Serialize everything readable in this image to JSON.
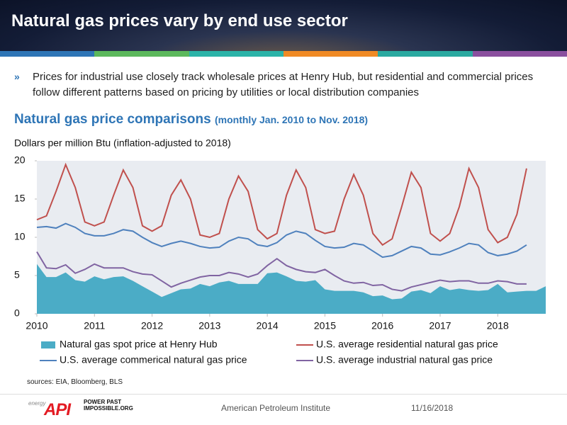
{
  "header": {
    "title": "Natural gas prices vary by end use sector"
  },
  "bullet": "Prices for industrial use closely track wholesale prices at Henry Hub, but residential and commercial prices follow different patterns based on pricing by utilities or local distribution companies",
  "sources": "sources:  EIA, Bloomberg, BLS",
  "footer": {
    "logo_small": "energy",
    "logo": "API",
    "tagline": "POWER PAST IMPOSSIBLE.ORG",
    "org": "American Petroleum Institute",
    "date": "11/16/2018"
  },
  "chart_data": {
    "type": "line",
    "title": "Natural gas price comparisons",
    "subtitle": "(monthly Jan. 2010 to Nov. 2018)",
    "y_label": "Dollars per million Btu (inflation-adjusted to 2018)",
    "background": "#e9ecf1",
    "x": [
      2010,
      2010.167,
      2010.333,
      2010.5,
      2010.667,
      2010.833,
      2011,
      2011.167,
      2011.333,
      2011.5,
      2011.667,
      2011.833,
      2012,
      2012.167,
      2012.333,
      2012.5,
      2012.667,
      2012.833,
      2013,
      2013.167,
      2013.333,
      2013.5,
      2013.667,
      2013.833,
      2014,
      2014.167,
      2014.333,
      2014.5,
      2014.667,
      2014.833,
      2015,
      2015.167,
      2015.333,
      2015.5,
      2015.667,
      2015.833,
      2016,
      2016.167,
      2016.333,
      2016.5,
      2016.667,
      2016.833,
      2017,
      2017.167,
      2017.333,
      2017.5,
      2017.667,
      2017.833,
      2018,
      2018.167,
      2018.333,
      2018.5,
      2018.667,
      2018.833
    ],
    "xlim": [
      2010,
      2018.833
    ],
    "xticks": [
      2010,
      2011,
      2012,
      2013,
      2014,
      2015,
      2016,
      2017,
      2018
    ],
    "ylim": [
      0,
      20
    ],
    "yticks": [
      0,
      5,
      10,
      15,
      20
    ],
    "series": [
      {
        "name": "Natural gas spot price at Henry Hub",
        "kind": "area",
        "color": "#4bacc6",
        "values": [
          6.5,
          4.8,
          4.8,
          5.4,
          4.4,
          4.2,
          4.9,
          4.5,
          4.8,
          4.9,
          4.3,
          3.6,
          2.9,
          2.2,
          2.7,
          3.2,
          3.3,
          3.9,
          3.6,
          4.1,
          4.3,
          3.9,
          3.9,
          3.9,
          5.3,
          5.4,
          4.9,
          4.3,
          4.2,
          4.4,
          3.2,
          3.0,
          3.0,
          3.0,
          2.8,
          2.3,
          2.4,
          1.9,
          2.0,
          2.9,
          3.1,
          2.7,
          3.6,
          3.1,
          3.3,
          3.1,
          3.0,
          3.1,
          3.9,
          2.8,
          2.9,
          3.0,
          3.0,
          3.6
        ]
      },
      {
        "name": "U.S. average residential natural gas price",
        "kind": "line",
        "color": "#c0504d",
        "values": [
          12.3,
          12.8,
          16,
          19.5,
          16.5,
          12.0,
          11.5,
          12,
          15.5,
          18.8,
          16.5,
          11.5,
          10.8,
          11.5,
          15.5,
          17.5,
          15,
          10.3,
          10.0,
          10.5,
          15,
          18,
          16,
          11,
          9.8,
          10.5,
          15.5,
          18.8,
          16.5,
          11,
          10.5,
          10.8,
          15,
          18.2,
          15.5,
          10.5,
          9,
          9.8,
          14,
          18.5,
          16.5,
          10.5,
          9.5,
          10.5,
          14,
          19,
          16.5,
          11,
          9.3,
          10,
          13,
          19,
          null,
          null
        ]
      },
      {
        "name": "U.S. average commerical natural gas price",
        "kind": "line",
        "color": "#4f81bd",
        "values": [
          11.3,
          11.4,
          11.2,
          11.8,
          11.3,
          10.5,
          10.2,
          10.2,
          10.5,
          11.0,
          10.8,
          10.0,
          9.3,
          8.8,
          9.2,
          9.5,
          9.2,
          8.8,
          8.6,
          8.7,
          9.5,
          10.0,
          9.8,
          9.0,
          8.8,
          9.3,
          10.3,
          10.8,
          10.5,
          9.6,
          8.8,
          8.6,
          8.7,
          9.2,
          9.0,
          8.2,
          7.4,
          7.6,
          8.2,
          8.8,
          8.6,
          7.8,
          7.7,
          8.1,
          8.6,
          9.2,
          9.0,
          8.0,
          7.6,
          7.8,
          8.2,
          9.0,
          null,
          null
        ]
      },
      {
        "name": "U.S. average industrial natural gas price",
        "kind": "line",
        "color": "#8064a2",
        "values": [
          8.1,
          6.0,
          5.9,
          6.4,
          5.3,
          5.8,
          6.5,
          6.0,
          6.0,
          6.0,
          5.5,
          5.2,
          5.1,
          4.3,
          3.5,
          4.0,
          4.4,
          4.8,
          5.0,
          5.0,
          5.4,
          5.2,
          4.8,
          5.2,
          6.3,
          7.2,
          6.3,
          5.8,
          5.5,
          5.4,
          5.8,
          5.0,
          4.3,
          4.0,
          4.1,
          3.7,
          3.8,
          3.2,
          3.0,
          3.5,
          3.8,
          4.1,
          4.4,
          4.2,
          4.3,
          4.3,
          4.0,
          4.0,
          4.3,
          4.2,
          3.9,
          3.9,
          null,
          null
        ]
      }
    ]
  }
}
